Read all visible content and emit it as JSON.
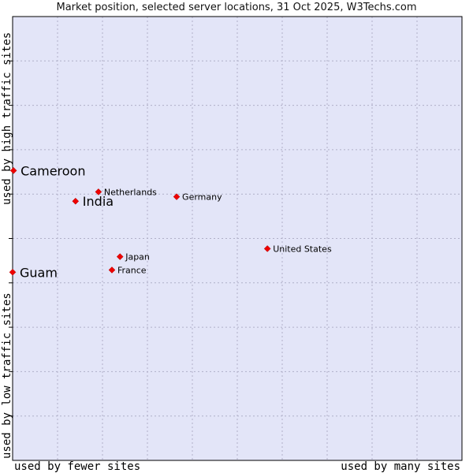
{
  "chart_data": {
    "type": "scatter",
    "title": "Market position, selected server locations, 31 Oct 2025, W3Techs.com",
    "xlabel_low": "used by fewer sites",
    "xlabel_high": "used by many sites",
    "ylabel_low": "used by low traffic sites",
    "ylabel_high": "used by high traffic sites",
    "xlim": [
      0,
      10
    ],
    "ylim": [
      0,
      10
    ],
    "grid": true,
    "points": [
      {
        "name": "Cameroon",
        "x": 0.02,
        "y": 6.53,
        "emphasis": true
      },
      {
        "name": "India",
        "x": 1.4,
        "y": 5.84,
        "emphasis": true
      },
      {
        "name": "Netherlands",
        "x": 1.91,
        "y": 6.05,
        "emphasis": false
      },
      {
        "name": "Germany",
        "x": 3.65,
        "y": 5.94,
        "emphasis": false
      },
      {
        "name": "United States",
        "x": 5.67,
        "y": 4.77,
        "emphasis": false
      },
      {
        "name": "Japan",
        "x": 2.39,
        "y": 4.59,
        "emphasis": false
      },
      {
        "name": "France",
        "x": 2.21,
        "y": 4.29,
        "emphasis": false
      },
      {
        "name": "Guam",
        "x": 0.0,
        "y": 4.24,
        "emphasis": true
      }
    ]
  },
  "colors": {
    "plot_background": "#e3e5f8",
    "grid": "#b0b0c8",
    "marker": "#ee0000",
    "frame": "#000000"
  }
}
